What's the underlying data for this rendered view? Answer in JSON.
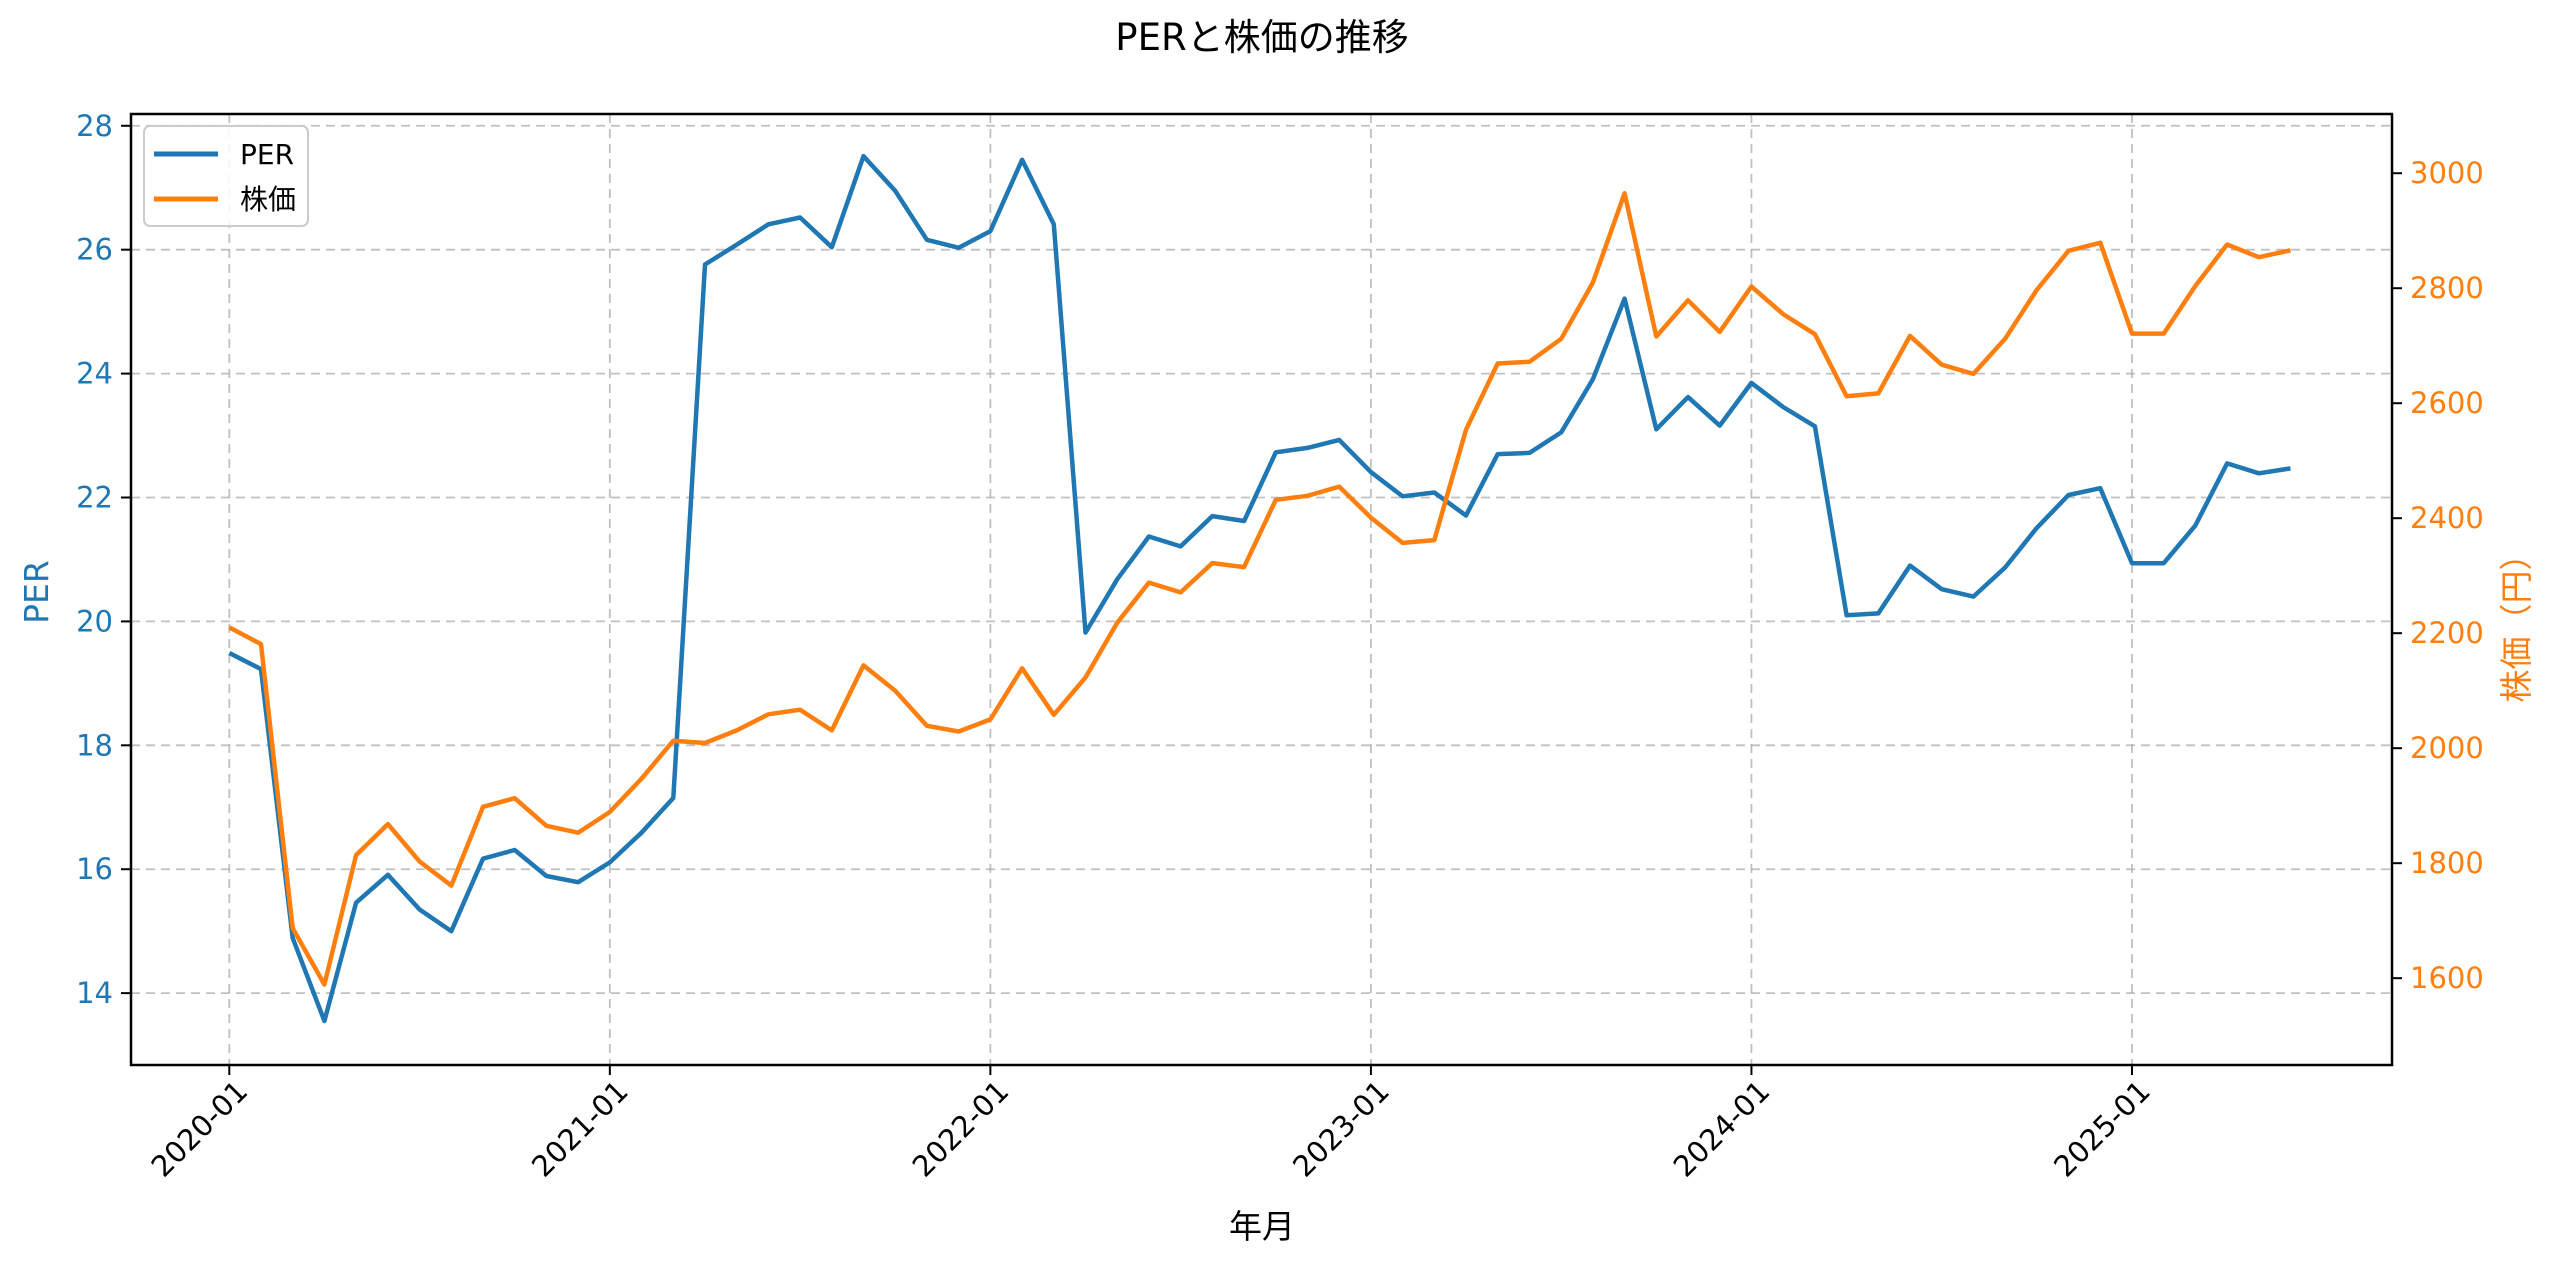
{
  "chart_data": {
    "type": "line",
    "title": "PERと株価の推移",
    "xlabel": "年月",
    "ylabel": "PER",
    "ylabel_right": "株価（円）",
    "x_tick_labels": [
      "2020-01",
      "2021-01",
      "2022-01",
      "2023-01",
      "2024-01",
      "2025-01"
    ],
    "y_ticks_left": [
      14,
      16,
      18,
      20,
      22,
      24,
      26,
      28
    ],
    "y_ticks_right": [
      1600,
      1800,
      2000,
      2200,
      2400,
      2600,
      2800,
      3000
    ],
    "ylim_left": [
      12.84,
      28.19
    ],
    "ylim_right": [
      1449,
      3103
    ],
    "xlim_months": [
      -3.1,
      68.2
    ],
    "grid": true,
    "legend_position": "upper left",
    "x": [
      "2020-01",
      "2020-02",
      "2020-03",
      "2020-04",
      "2020-05",
      "2020-06",
      "2020-07",
      "2020-08",
      "2020-09",
      "2020-10",
      "2020-11",
      "2020-12",
      "2021-01",
      "2021-02",
      "2021-03",
      "2021-04",
      "2021-05",
      "2021-06",
      "2021-07",
      "2021-08",
      "2021-09",
      "2021-10",
      "2021-11",
      "2021-12",
      "2022-01",
      "2022-02",
      "2022-03",
      "2022-04",
      "2022-05",
      "2022-06",
      "2022-07",
      "2022-08",
      "2022-09",
      "2022-10",
      "2022-11",
      "2022-12",
      "2023-01",
      "2023-02",
      "2023-03",
      "2023-04",
      "2023-05",
      "2023-06",
      "2023-07",
      "2023-08",
      "2023-09",
      "2023-10",
      "2023-11",
      "2023-12",
      "2024-01",
      "2024-02",
      "2024-03",
      "2024-04",
      "2024-05",
      "2024-06",
      "2024-07",
      "2024-08",
      "2024-09",
      "2024-10",
      "2024-11",
      "2024-12",
      "2025-01",
      "2025-02",
      "2025-03",
      "2025-04",
      "2025-05",
      "2025-06"
    ],
    "series": [
      {
        "name": "PER",
        "axis": "left",
        "color": "#1f77b4",
        "values": [
          19.49,
          19.23,
          14.89,
          13.55,
          15.46,
          15.91,
          15.35,
          15.0,
          16.17,
          16.31,
          15.89,
          15.79,
          16.11,
          16.59,
          17.15,
          25.76,
          26.08,
          26.41,
          26.52,
          26.04,
          27.51,
          26.95,
          26.16,
          26.03,
          26.3,
          27.45,
          26.41,
          19.82,
          20.68,
          21.37,
          21.21,
          21.7,
          21.62,
          22.73,
          22.8,
          22.93,
          22.41,
          22.02,
          22.08,
          21.71,
          22.7,
          22.72,
          23.05,
          23.91,
          25.21,
          23.1,
          23.62,
          23.16,
          23.85,
          23.46,
          23.15,
          20.1,
          20.13,
          20.9,
          20.52,
          20.4,
          20.87,
          21.51,
          22.04,
          22.15,
          20.94,
          20.94,
          21.55,
          22.55,
          22.39,
          22.47
        ]
      },
      {
        "name": "株価",
        "axis": "right",
        "color": "#ff7f0e",
        "values": [
          2210,
          2181,
          1687,
          1589,
          1814,
          1868,
          1803,
          1761,
          1898,
          1913,
          1865,
          1853,
          1889,
          1947,
          2013,
          2009,
          2031,
          2059,
          2067,
          2031,
          2144,
          2100,
          2039,
          2029,
          2050,
          2139,
          2058,
          2123,
          2218,
          2288,
          2271,
          2322,
          2315,
          2432,
          2439,
          2455,
          2401,
          2357,
          2362,
          2554,
          2669,
          2672,
          2712,
          2810,
          2965,
          2716,
          2779,
          2724,
          2803,
          2755,
          2720,
          2612,
          2617,
          2717,
          2667,
          2651,
          2712,
          2797,
          2865,
          2879,
          2721,
          2721,
          2804,
          2876,
          2854,
          2866
        ]
      }
    ]
  },
  "colors": {
    "per": "#1f77b4",
    "price": "#ff7f0e",
    "grid": "#b0b0b0",
    "axis": "#000000"
  },
  "legend": {
    "items": [
      {
        "label": "PER",
        "color": "#1f77b4"
      },
      {
        "label": "株価",
        "color": "#ff7f0e"
      }
    ]
  }
}
